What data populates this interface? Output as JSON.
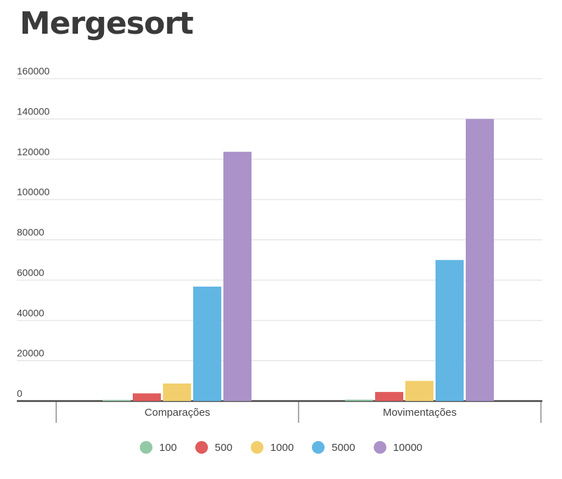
{
  "chart_data": {
    "type": "bar",
    "title": "Mergesort",
    "categories": [
      "Comparações",
      "Movimentações"
    ],
    "series": [
      {
        "name": "100",
        "color": "#93c9a6",
        "values": [
          550,
          700
        ]
      },
      {
        "name": "500",
        "color": "#e05c5c",
        "values": [
          3800,
          4500
        ]
      },
      {
        "name": "1000",
        "color": "#f2cf6c",
        "values": [
          8700,
          10000
        ]
      },
      {
        "name": "5000",
        "color": "#62b6e4",
        "values": [
          56800,
          70000
        ]
      },
      {
        "name": "10000",
        "color": "#ab92c9",
        "values": [
          123700,
          140000
        ]
      }
    ],
    "yticks": [
      "0",
      "20000",
      "40000",
      "60000",
      "80000",
      "100000",
      "120000",
      "140000",
      "160000"
    ],
    "ylim": [
      0,
      160000
    ],
    "grid": true,
    "legend_position": "bottom"
  }
}
